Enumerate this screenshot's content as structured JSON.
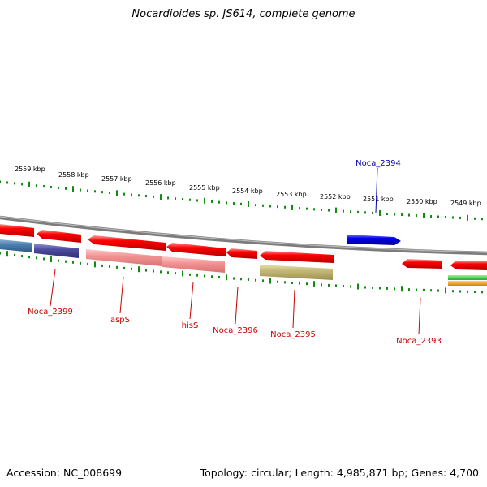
{
  "title": "Nocardioides sp. JS614, complete genome",
  "footer": {
    "accession": "Accession: NC_008699",
    "summary": "Topology: circular; Length: 4,985,871 bp; Genes: 4,700"
  },
  "ticks": [
    "2559 kbp",
    "2558 kbp",
    "2557 kbp",
    "2556 kbp",
    "2555 kbp",
    "2554 kbp",
    "2553 kbp",
    "2552 kbp",
    "2551 kbp",
    "2550 kbp",
    "2549 kbp"
  ],
  "gene_labels": [
    {
      "text": "Noca_2399",
      "color": "#cc0000"
    },
    {
      "text": "aspS",
      "color": "#cc0000"
    },
    {
      "text": "hisS",
      "color": "#cc0000"
    },
    {
      "text": "Noca_2396",
      "color": "#cc0000"
    },
    {
      "text": "Noca_2395",
      "color": "#cc0000"
    },
    {
      "text": "Noca_2394",
      "color": "#0000aa"
    },
    {
      "text": "Noca_2393",
      "color": "#cc0000"
    }
  ],
  "colors": {
    "backbone": "#808080",
    "tick": "#138a13",
    "gene_red": "#ff0000",
    "gene_blue": "#0000ee",
    "label_red": "#cc0000",
    "label_blue": "#0000aa"
  }
}
